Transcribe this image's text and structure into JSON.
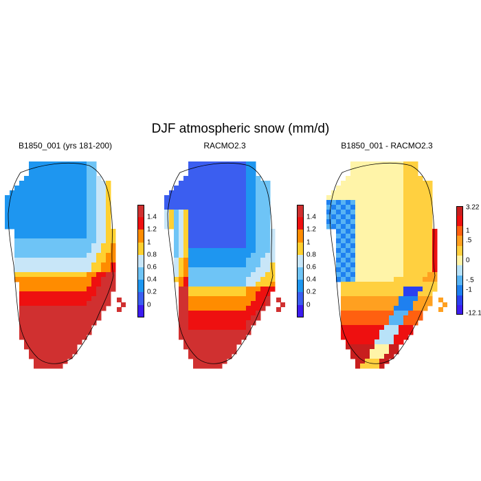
{
  "title": "DJF atmospheric snow (mm/d)",
  "panels": [
    {
      "title": "B1850_001 (yrs 181-200)",
      "colorbar": {
        "labels": [
          "1.4",
          "1.2",
          "1",
          "0.8",
          "0.6",
          "0.4",
          "0.2",
          "0"
        ],
        "colors": [
          "#d03030",
          "#ee1010",
          "#ff8c00",
          "#ffd030",
          "#c8e6f8",
          "#6ec4f6",
          "#1e96f0",
          "#3b5ef0",
          "#3c1cf0"
        ]
      }
    },
    {
      "title": "RACMO2.3",
      "colorbar": {
        "labels": [
          "1.4",
          "1.2",
          "1",
          "0.8",
          "0.6",
          "0.4",
          "0.2",
          "0"
        ],
        "colors": [
          "#d03030",
          "#ee1010",
          "#ff8c00",
          "#ffd030",
          "#c8e6f8",
          "#6ec4f6",
          "#1e96f0",
          "#3b5ef0",
          "#3c1cf0"
        ]
      }
    },
    {
      "title": "B1850_001 - RACMO2.3",
      "colorbar": {
        "labels": [
          "3.22",
          "1",
          ".5",
          "0",
          "-.5",
          "-1",
          "-12.1"
        ],
        "colors": [
          "#c81e1e",
          "#ee1010",
          "#ff6010",
          "#ffa020",
          "#ffd040",
          "#fff4a8",
          "#b8e2f8",
          "#58b4f4",
          "#1e80f0",
          "#2a40f0",
          "#3c1cf0"
        ]
      }
    }
  ]
}
